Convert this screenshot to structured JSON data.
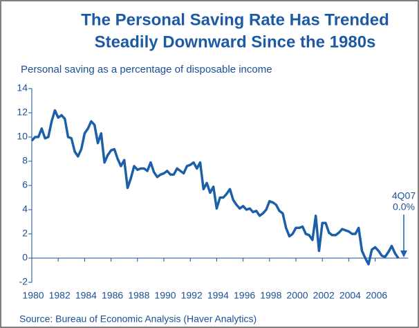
{
  "chart_data": {
    "type": "line",
    "title": [
      "The Personal Saving Rate Has Trended",
      "Steadily Downward Since the 1980s"
    ],
    "subtitle": "Personal saving as a percentage of disposable income",
    "source": "Source: Bureau of Economic Analysis (Haver Analytics)",
    "annotations": [
      "4Q07",
      "0.0%"
    ],
    "x": [
      1980,
      1980.25,
      1980.5,
      1980.75,
      1981,
      1981.25,
      1981.5,
      1981.75,
      1982,
      1982.25,
      1982.5,
      1982.75,
      1983,
      1983.25,
      1983.5,
      1983.75,
      1984,
      1984.25,
      1984.5,
      1984.75,
      1985,
      1985.25,
      1985.5,
      1985.75,
      1986,
      1986.25,
      1986.5,
      1986.75,
      1987,
      1987.25,
      1987.5,
      1987.75,
      1988,
      1988.25,
      1988.5,
      1988.75,
      1989,
      1989.25,
      1989.5,
      1989.75,
      1990,
      1990.25,
      1990.5,
      1990.75,
      1991,
      1991.25,
      1991.5,
      1991.75,
      1992,
      1992.25,
      1992.5,
      1992.75,
      1993,
      1993.25,
      1993.5,
      1993.75,
      1994,
      1994.25,
      1994.5,
      1994.75,
      1995,
      1995.25,
      1995.5,
      1995.75,
      1996,
      1996.25,
      1996.5,
      1996.75,
      1997,
      1997.25,
      1997.5,
      1997.75,
      1998,
      1998.25,
      1998.5,
      1998.75,
      1999,
      1999.25,
      1999.5,
      1999.75,
      2000,
      2000.25,
      2000.5,
      2000.75,
      2001,
      2001.25,
      2001.5,
      2001.75,
      2002,
      2002.25,
      2002.5,
      2002.75,
      2003,
      2003.25,
      2003.5,
      2003.75,
      2004,
      2004.25,
      2004.5,
      2004.75,
      2005,
      2005.25,
      2005.5,
      2005.75,
      2006,
      2006.25,
      2006.5,
      2006.75,
      2007,
      2007.25,
      2007.5,
      2007.75
    ],
    "series": [
      {
        "name": "Personal saving rate",
        "color": "#1a5fa8",
        "values": [
          9.7,
          10.0,
          10.0,
          10.7,
          9.9,
          10.0,
          11.3,
          12.2,
          11.6,
          11.8,
          11.5,
          10.0,
          9.9,
          8.8,
          8.4,
          9.0,
          10.3,
          10.7,
          11.3,
          11.0,
          9.5,
          10.3,
          7.9,
          8.5,
          8.9,
          9.0,
          8.2,
          7.6,
          8.1,
          5.8,
          6.6,
          7.6,
          7.3,
          7.4,
          7.4,
          7.2,
          7.9,
          7.1,
          6.7,
          6.9,
          7.0,
          7.2,
          6.9,
          6.9,
          7.4,
          7.2,
          7.0,
          7.6,
          7.7,
          7.9,
          7.4,
          7.9,
          5.7,
          6.2,
          5.4,
          5.9,
          4.1,
          5.0,
          5.0,
          5.3,
          5.7,
          4.8,
          4.4,
          4.1,
          4.3,
          4.0,
          4.1,
          3.8,
          3.9,
          3.5,
          3.7,
          4.0,
          4.7,
          4.6,
          4.4,
          3.9,
          3.7,
          2.5,
          1.8,
          2.0,
          2.5,
          2.5,
          2.6,
          2.0,
          1.9,
          1.5,
          3.5,
          0.6,
          2.9,
          2.9,
          2.1,
          1.9,
          1.9,
          2.1,
          2.4,
          2.3,
          2.2,
          2.0,
          2.0,
          2.5,
          0.6,
          0.0,
          -0.5,
          0.7,
          0.9,
          0.6,
          0.2,
          0.1,
          0.5,
          1.0,
          0.4,
          0.0
        ]
      }
    ],
    "xlim": [
      1980,
      2008.5
    ],
    "xticks": [
      1980,
      1982,
      1984,
      1986,
      1988,
      1990,
      1992,
      1994,
      1996,
      1998,
      2000,
      2002,
      2004,
      2006
    ],
    "ylim": [
      -2,
      14
    ],
    "yticks": [
      -2,
      0,
      2,
      4,
      6,
      8,
      10,
      12,
      14
    ]
  }
}
